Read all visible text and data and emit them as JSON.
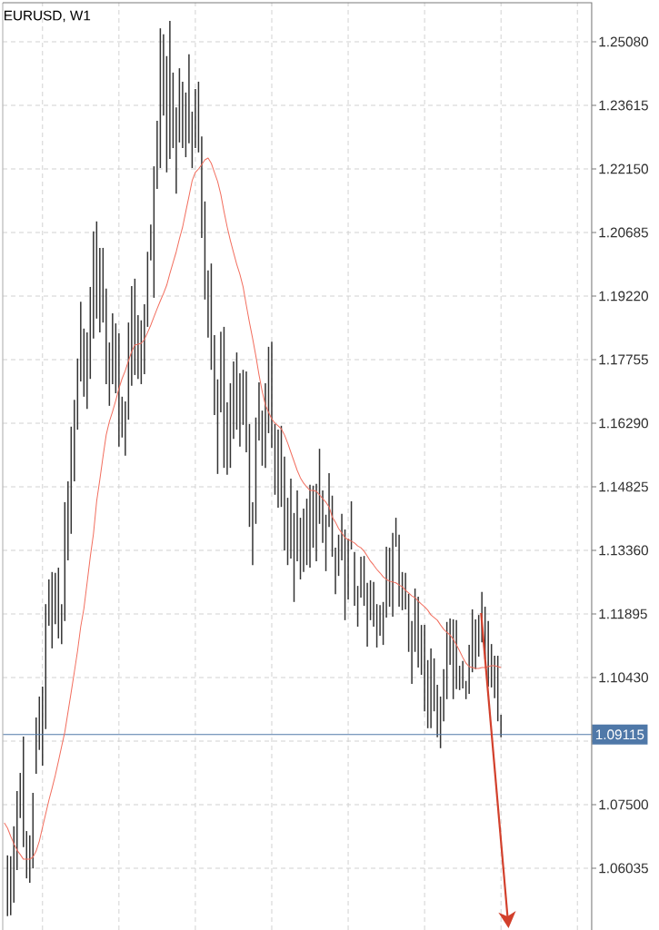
{
  "chart_data": [
    {
      "type": "bar",
      "title": "EURUSD, W1",
      "color": "#333333",
      "categories": [
        null,
        null,
        null,
        null,
        null,
        null,
        null,
        null,
        null,
        null,
        null,
        null,
        null,
        null,
        null,
        null,
        null,
        null,
        null,
        null,
        null,
        null,
        null,
        null,
        null,
        null,
        null,
        null,
        null,
        null,
        null,
        null,
        null,
        null,
        null,
        null,
        null,
        null,
        null,
        null,
        null,
        null,
        null,
        null,
        null,
        null,
        null,
        null,
        null,
        null,
        null,
        null,
        null,
        null,
        null,
        null,
        null,
        null,
        null,
        null,
        null,
        null,
        null,
        null,
        null,
        null,
        null,
        null,
        null,
        null,
        null,
        null,
        null,
        null,
        null,
        null,
        null,
        null,
        null,
        null,
        null,
        null,
        null,
        null,
        null,
        null,
        null,
        null,
        null,
        null,
        null,
        null,
        null,
        null,
        null,
        null,
        null,
        null,
        null,
        null,
        null,
        null,
        null,
        null,
        null,
        null,
        null,
        null,
        null,
        null,
        null,
        null,
        null,
        null,
        null,
        null,
        null,
        null,
        null,
        null,
        null,
        null,
        null,
        null,
        null,
        null,
        null,
        null,
        null,
        null,
        null,
        null,
        null,
        null,
        null,
        null,
        null,
        null,
        null,
        null,
        null,
        null,
        null,
        null,
        null,
        null,
        null,
        null,
        null,
        null,
        null,
        null,
        null,
        null,
        null,
        null,
        null,
        null,
        null,
        null,
        null,
        null,
        null,
        null,
        null,
        null,
        null,
        null,
        null,
        null,
        null,
        null,
        null,
        null,
        null,
        null,
        null,
        null,
        null,
        null,
        null,
        null,
        null,
        null,
        null
      ],
      "base": [
        null,
        1.0493,
        1.0495,
        1.0524,
        1.0599,
        1.0719,
        1.0652,
        1.058,
        1.057,
        1.0603,
        1.0821,
        1.0876,
        1.084,
        1.0924,
        1.1162,
        1.111,
        1.1166,
        1.1133,
        1.112,
        1.1173,
        1.1313,
        1.1374,
        1.1495,
        1.1614,
        1.1725,
        1.169,
        1.1662,
        1.1731,
        1.1824,
        1.187,
        1.1838,
        1.1861,
        1.1719,
        1.1669,
        1.1719,
        1.1698,
        1.1575,
        1.1596,
        1.1554,
        1.1637,
        1.1715,
        1.174,
        1.1731,
        1.1719,
        1.1742,
        1.1851,
        1.2004,
        1.1918,
        1.2169,
        1.2217,
        1.2338,
        1.2207,
        1.2238,
        1.2263,
        1.2158,
        1.2276,
        1.2263,
        1.2242,
        1.2274,
        1.2217,
        1.2263,
        1.2253,
        1.2056,
        1.1914,
        1.1826,
        1.1752,
        1.1648,
        1.1512,
        1.1654,
        1.1526,
        1.151,
        1.1526,
        1.1593,
        1.1614,
        1.1575,
        1.1625,
        1.1562,
        1.139,
        1.1302,
        1.1397,
        1.1589,
        1.1531,
        1.1526,
        1.1606,
        1.1572,
        1.1464,
        1.1434,
        1.1436,
        1.1336,
        1.1302,
        1.1317,
        1.1217,
        1.1311,
        1.1269,
        1.1286,
        1.1302,
        1.1296,
        1.1342,
        1.1311,
        1.1397,
        1.1353,
        1.1288,
        1.139,
        1.1321,
        1.1235,
        1.1277,
        1.1313,
        1.1175,
        1.1223,
        1.1338,
        1.1208,
        1.116,
        1.1227,
        1.1208,
        1.1114,
        1.1175,
        1.116,
        1.1112,
        1.1139,
        1.1118,
        1.1181,
        1.1206,
        1.1183,
        1.1344,
        1.1206,
        1.1198,
        1.12,
        1.1102,
        1.1028,
        1.1102,
        1.1066,
        1.1049,
        1.0965,
        1.0926,
        1.0926,
        1.0965,
        1.0905,
        1.088,
        1.0942,
        1.0993,
        1.1072,
        1.0993,
        1.1016,
        1.1014,
        1.1018,
        1.0993,
        1.1005,
        1.1055,
        1.1062,
        1.1091,
        1.1124,
        1.1085,
        1.1022,
        1.102,
        1.0995,
        1.0942,
        1.0905,
        null,
        null,
        null,
        null,
        null,
        null,
        null,
        null,
        null,
        null,
        null,
        null,
        null,
        null,
        null,
        null,
        null,
        null,
        null,
        null,
        null,
        null,
        null,
        null,
        null,
        null,
        null,
        null
      ],
      "values": [
        null,
        0.014,
        0.0136,
        0.0176,
        0.0182,
        0.0104,
        0.0255,
        0.0109,
        0.0109,
        0.0174,
        0.013,
        0.0123,
        0.0182,
        0.0288,
        0.0107,
        0.0176,
        0.0118,
        0.0163,
        0.0092,
        0.0274,
        0.0182,
        0.0247,
        0.0188,
        0.0164,
        0.0184,
        0.0157,
        0.0176,
        0.0212,
        0.0247,
        0.0224,
        0.0195,
        0.0172,
        0.022,
        0.0146,
        0.0163,
        0.0161,
        0.0261,
        0.0094,
        0.0125,
        0.0224,
        0.023,
        0.0222,
        0.0147,
        0.0147,
        0.0161,
        0.0173,
        0.0083,
        0.0303,
        0.0157,
        0.0322,
        0.0187,
        0.0268,
        0.0318,
        0.0174,
        0.0199,
        0.0171,
        0.0153,
        0.0149,
        0.0205,
        0.013,
        0.0136,
        0.0163,
        0.0234,
        0.0226,
        0.0155,
        0.0245,
        0.0184,
        0.0218,
        0.0186,
        0.0325,
        0.0167,
        0.0195,
        0.0178,
        0.0178,
        0.0169,
        0.0127,
        0.0186,
        0.0237,
        0.0145,
        0.0245,
        0.0134,
        0.0127,
        0.0195,
        0.0199,
        0.0245,
        0.0163,
        0.018,
        0.0187,
        0.0216,
        0.0155,
        0.0184,
        0.0205,
        0.0163,
        0.0142,
        0.0146,
        0.0153,
        0.0191,
        0.0143,
        0.0178,
        0.0173,
        0.0121,
        0.013,
        0.0124,
        0.0141,
        0.0107,
        0.0095,
        0.0107,
        0.0209,
        0.014,
        0.0111,
        0.0124,
        0.0094,
        0.0094,
        0.0115,
        0.0147,
        0.0092,
        0.0103,
        0.01,
        0.0071,
        0.0099,
        0.0163,
        0.0136,
        0.0193,
        0.0067,
        0.0166,
        0.0088,
        0.0084,
        0.0134,
        0.0145,
        0.0146,
        0.0163,
        0.0115,
        0.0199,
        0.0157,
        0.0184,
        0.0122,
        0.0121,
        0.0119,
        0.012,
        0.0178,
        0.0107,
        0.0184,
        0.0159,
        0.0056,
        0.0063,
        0.0042,
        0.0113,
        0.0145,
        0.0115,
        0.0096,
        0.0116,
        0.0121,
        0.0151,
        0.01,
        0.0098,
        0.0151,
        0.0052,
        null,
        null,
        null,
        null,
        null,
        null,
        null,
        null,
        null,
        null,
        null,
        null,
        null,
        null,
        null,
        null,
        null,
        null,
        null,
        null,
        null,
        null,
        null,
        null,
        null,
        null,
        null,
        null
      ],
      "ylim": [
        1.0461,
        1.2598
      ],
      "yticks": [
        {
          "value": 1.2508,
          "label": "1.25080"
        },
        1.23615,
        {
          "value": 1.2215,
          "label": "1.22150"
        },
        1.20685,
        {
          "value": 1.1922,
          "label": "1.19220"
        },
        1.17755,
        {
          "value": 1.1629,
          "label": "1.16290"
        },
        1.14825,
        {
          "value": 1.1336,
          "label": "1.13360"
        },
        1.11895,
        {
          "value": 1.1043,
          "label": "1.10430"
        },
        {
          "value": 1.08965,
          "label": null
        },
        {
          "value": 1.075,
          "label": "1.07500"
        },
        1.06035
      ],
      "ref_lines": [
        {
          "axis": "y",
          "value": 1.09115,
          "label": "1.09115",
          "color": "#4f78a8"
        }
      ],
      "grid": true,
      "tick_labels": "y"
    },
    {
      "type": "line",
      "color": "#f26e5e",
      "categories": [
        null,
        null,
        null,
        null,
        null,
        null,
        null,
        null,
        null,
        null,
        null,
        null,
        null,
        null,
        null,
        null,
        null,
        null,
        null,
        null,
        null,
        null,
        null,
        null,
        null,
        null,
        null,
        null,
        null,
        null,
        null,
        null,
        null,
        null,
        null,
        null,
        null,
        null,
        null,
        null,
        null,
        null,
        null,
        null,
        null,
        null,
        null,
        null,
        null,
        null,
        null,
        null,
        null,
        null,
        null,
        null,
        null,
        null,
        null,
        null,
        null,
        null,
        null,
        null,
        null,
        null,
        null,
        null,
        null,
        null,
        null,
        null,
        null,
        null,
        null,
        null,
        null,
        null,
        null,
        null,
        null,
        null,
        null,
        null,
        null,
        null,
        null,
        null,
        null,
        null,
        null,
        null,
        null,
        null,
        null,
        null,
        null,
        null,
        null,
        null,
        null,
        null,
        null,
        null,
        null,
        null,
        null,
        null,
        null,
        null,
        null,
        null,
        null,
        null,
        null,
        null,
        null,
        null,
        null,
        null,
        null,
        null,
        null,
        null,
        null,
        null,
        null,
        null,
        null,
        null,
        null,
        null,
        null,
        null,
        null,
        null,
        null,
        null,
        null,
        null,
        null,
        null,
        null,
        null,
        null,
        null,
        null,
        null,
        null,
        null,
        null,
        null,
        null,
        null,
        null,
        null,
        null,
        null,
        null,
        null,
        null,
        null,
        null,
        null,
        null,
        null,
        null,
        null,
        null,
        null,
        null,
        null,
        null,
        null,
        null,
        null,
        null,
        null,
        null,
        null,
        null,
        null,
        null,
        null,
        null
      ],
      "values": [
        1.0708,
        1.0696,
        1.0677,
        1.066,
        1.0645,
        1.0635,
        1.0624,
        1.0624,
        1.0624,
        1.0629,
        1.0643,
        1.0666,
        1.0698,
        1.0729,
        1.076,
        1.0788,
        1.0817,
        1.085,
        1.0884,
        1.0917,
        1.0963,
        1.1009,
        1.1056,
        1.1104,
        1.116,
        1.1202,
        1.1261,
        1.1321,
        1.1374,
        1.1449,
        1.1499,
        1.1552,
        1.1602,
        1.1633,
        1.1656,
        1.1681,
        1.1709,
        1.1732,
        1.175,
        1.1773,
        1.1794,
        1.1809,
        1.1811,
        1.1813,
        1.1822,
        1.1838,
        1.1855,
        1.1874,
        1.1893,
        1.1911,
        1.1928,
        1.1947,
        1.1974,
        1.1999,
        1.2024,
        1.2054,
        1.2081,
        1.2117,
        1.2152,
        1.2188,
        1.2207,
        1.2215,
        1.2225,
        1.2236,
        1.224,
        1.2228,
        1.2207,
        1.2186,
        1.2156,
        1.2117,
        1.2081,
        1.205,
        1.2022,
        1.1995,
        1.1972,
        1.1943,
        1.1901,
        1.1861,
        1.1824,
        1.1784,
        1.174,
        1.1702,
        1.1671,
        1.1654,
        1.1639,
        1.1629,
        1.1623,
        1.1616,
        1.1602,
        1.1583,
        1.1562,
        1.1541,
        1.152,
        1.1503,
        1.1491,
        1.1482,
        1.1474,
        1.1474,
        1.1472,
        1.1464,
        1.1455,
        1.1447,
        1.1436,
        1.1413,
        1.1401,
        1.1386,
        1.1376,
        1.1365,
        1.1361,
        1.1357,
        1.1353,
        1.1346,
        1.1342,
        1.1334,
        1.1323,
        1.1311,
        1.1302,
        1.1292,
        1.1284,
        1.1275,
        1.1269,
        1.1265,
        1.1263,
        1.1261,
        1.1256,
        1.1252,
        1.1244,
        1.1238,
        1.1231,
        1.1227,
        1.1219,
        1.1212,
        1.1206,
        1.1198,
        1.1187,
        1.1181,
        1.1175,
        1.1164,
        1.1154,
        1.1147,
        1.1141,
        1.1131,
        1.1118,
        1.1104,
        1.1089,
        1.1076,
        1.1068,
        1.1066,
        1.1064,
        1.1064,
        1.1066,
        1.1066,
        1.1068,
        1.107,
        1.107,
        1.1068,
        1.1066,
        null,
        null,
        null,
        null,
        null,
        null,
        null,
        null,
        null,
        null,
        null,
        null,
        null,
        null,
        null,
        null,
        null,
        null,
        null,
        null,
        null,
        null,
        null,
        null,
        null,
        null,
        null,
        null
      ],
      "ylim": [
        1.0461,
        1.2598
      ],
      "tick_labels": false
    }
  ]
}
